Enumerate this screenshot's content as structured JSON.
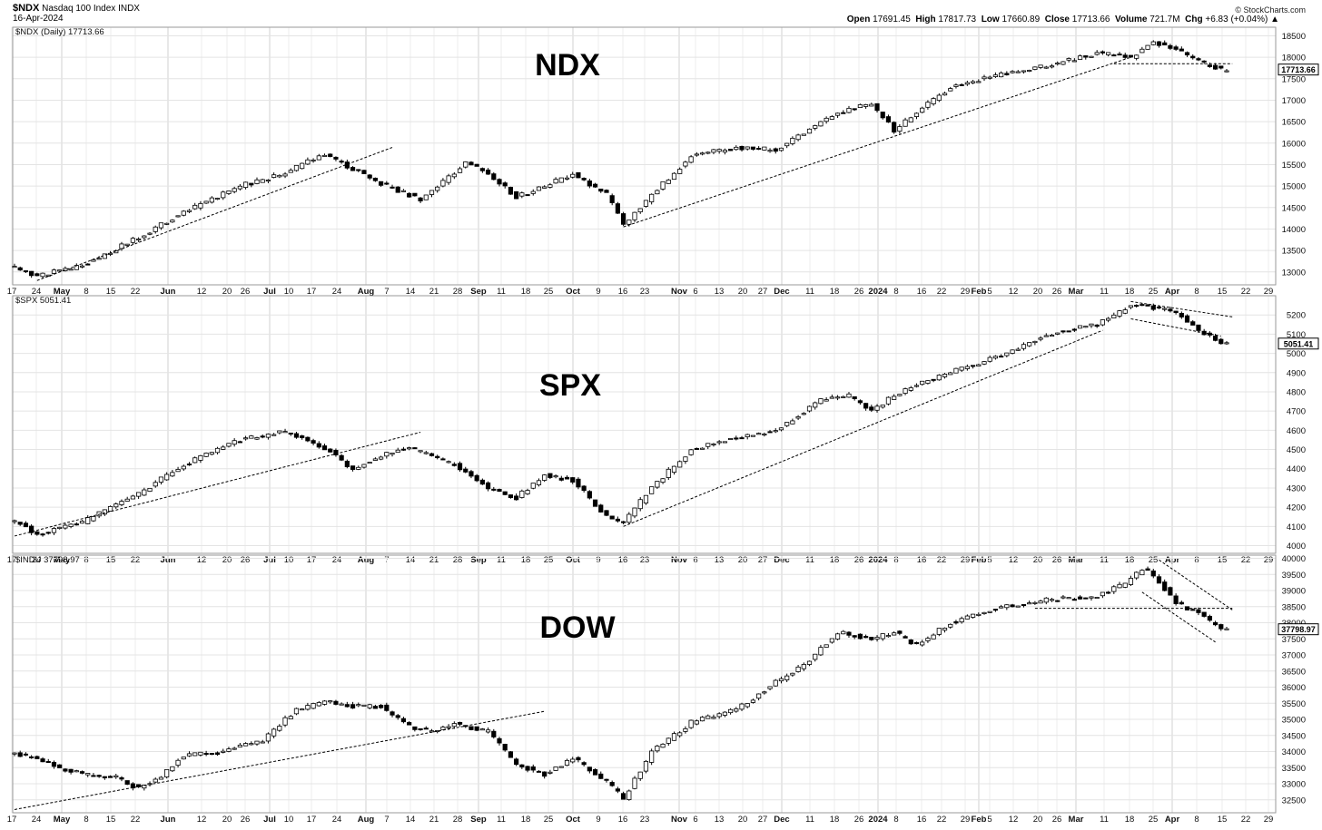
{
  "header": {
    "symbol": "$NDX",
    "name": "Nasdaq 100 Index",
    "exchange": "INDX",
    "date": "16-Apr-2024",
    "brand": "© StockCharts.com",
    "ohlc": {
      "open_label": "Open",
      "open": "17691.45",
      "high_label": "High",
      "high": "17817.73",
      "low_label": "Low",
      "low": "17660.89",
      "close_label": "Close",
      "close": "17713.66",
      "volume_label": "Volume",
      "volume": "721.7M",
      "chg_label": "Chg",
      "chg": "+6.83 (+0.04%)"
    }
  },
  "x_axis": {
    "ticks": [
      "17",
      "24",
      "May",
      "8",
      "15",
      "22",
      "Jun",
      "12",
      "20",
      "26",
      "Jul",
      "10",
      "17",
      "24",
      "Aug",
      "7",
      "14",
      "21",
      "28",
      "Sep",
      "11",
      "18",
      "25",
      "Oct",
      "9",
      "16",
      "23",
      "Nov",
      "6",
      "13",
      "20",
      "27",
      "Dec",
      "11",
      "18",
      "26",
      "2024",
      "8",
      "16",
      "22",
      "29",
      "Feb",
      "5",
      "12",
      "20",
      "26",
      "Mar",
      "11",
      "18",
      "25",
      "Apr",
      "8",
      "15",
      "22",
      "29"
    ],
    "bold_ticks": [
      "May",
      "Jun",
      "Jul",
      "Aug",
      "Sep",
      "Oct",
      "Nov",
      "Dec",
      "2024",
      "Feb",
      "Mar",
      "Apr"
    ]
  },
  "chart_data": [
    {
      "type": "candlestick",
      "panel_label": "$NDX (Daily) 17713.66",
      "big_label": "NDX",
      "last_value_label": "17713.66",
      "ylim": [
        12700,
        18700
      ],
      "y_ticks": [
        13000,
        13500,
        14000,
        14500,
        15000,
        15500,
        16000,
        16500,
        17000,
        17500,
        18000,
        18500
      ],
      "anchors": [
        [
          0,
          13100
        ],
        [
          4,
          12900
        ],
        [
          12,
          13150
        ],
        [
          22,
          13800
        ],
        [
          30,
          14400
        ],
        [
          40,
          15000
        ],
        [
          48,
          15300
        ],
        [
          55,
          15750
        ],
        [
          60,
          15400
        ],
        [
          66,
          15000
        ],
        [
          72,
          14700
        ],
        [
          78,
          15300
        ],
        [
          80,
          15550
        ],
        [
          84,
          15300
        ],
        [
          89,
          14750
        ],
        [
          94,
          15000
        ],
        [
          99,
          15300
        ],
        [
          105,
          14800
        ],
        [
          108,
          14100
        ],
        [
          113,
          14800
        ],
        [
          120,
          15700
        ],
        [
          128,
          15900
        ],
        [
          135,
          15850
        ],
        [
          143,
          16500
        ],
        [
          148,
          16800
        ],
        [
          152,
          16900
        ],
        [
          156,
          16300
        ],
        [
          160,
          16700
        ],
        [
          166,
          17300
        ],
        [
          175,
          17600
        ],
        [
          183,
          17800
        ],
        [
          192,
          18100
        ],
        [
          198,
          18000
        ],
        [
          202,
          18350
        ],
        [
          206,
          18200
        ],
        [
          210,
          17900
        ],
        [
          214,
          17714
        ]
      ],
      "trendlines": [
        {
          "from": [
            4,
            12800
          ],
          "to": [
            67,
            15900
          ],
          "style": "dashed"
        },
        {
          "from": [
            108,
            14050
          ],
          "to": [
            198,
            18000
          ],
          "style": "dashed"
        },
        {
          "from": [
            195,
            17850
          ],
          "to": [
            216,
            17850
          ],
          "style": "dashed"
        }
      ]
    },
    {
      "type": "candlestick",
      "panel_label": "$SPX 5051.41",
      "big_label": "SPX",
      "last_value_label": "5051.41",
      "ylim": [
        3960,
        5300
      ],
      "y_ticks": [
        4000,
        4100,
        4200,
        4300,
        4400,
        4500,
        4600,
        4700,
        4800,
        4900,
        5000,
        5100,
        5200
      ],
      "anchors": [
        [
          0,
          4130
        ],
        [
          4,
          4060
        ],
        [
          12,
          4120
        ],
        [
          22,
          4270
        ],
        [
          30,
          4420
        ],
        [
          40,
          4550
        ],
        [
          48,
          4590
        ],
        [
          55,
          4510
        ],
        [
          60,
          4400
        ],
        [
          66,
          4480
        ],
        [
          70,
          4510
        ],
        [
          78,
          4420
        ],
        [
          84,
          4300
        ],
        [
          89,
          4250
        ],
        [
          94,
          4370
        ],
        [
          99,
          4340
        ],
        [
          105,
          4150
        ],
        [
          108,
          4120
        ],
        [
          113,
          4300
        ],
        [
          120,
          4500
        ],
        [
          128,
          4560
        ],
        [
          135,
          4600
        ],
        [
          143,
          4760
        ],
        [
          148,
          4780
        ],
        [
          152,
          4700
        ],
        [
          156,
          4780
        ],
        [
          160,
          4840
        ],
        [
          166,
          4900
        ],
        [
          175,
          4990
        ],
        [
          183,
          5100
        ],
        [
          192,
          5150
        ],
        [
          198,
          5250
        ],
        [
          202,
          5240
        ],
        [
          206,
          5210
        ],
        [
          210,
          5120
        ],
        [
          214,
          5051
        ]
      ],
      "trendlines": [
        {
          "from": [
            0,
            4050
          ],
          "to": [
            72,
            4590
          ],
          "style": "dashed"
        },
        {
          "from": [
            108,
            4100
          ],
          "to": [
            193,
            5120
          ],
          "style": "dashed"
        },
        {
          "from": [
            198,
            5270
          ],
          "to": [
            216,
            5190
          ],
          "style": "dashed"
        },
        {
          "from": [
            198,
            5180
          ],
          "to": [
            214,
            5090
          ],
          "style": "dashed"
        }
      ]
    },
    {
      "type": "candlestick",
      "panel_label": "$INDU 37798.97",
      "big_label": "DOW",
      "last_value_label": "37798.97",
      "ylim": [
        32100,
        40100
      ],
      "y_ticks": [
        32500,
        33000,
        33500,
        34000,
        34500,
        35000,
        35500,
        36000,
        36500,
        37000,
        37500,
        38000,
        38500,
        39000,
        39500,
        40000
      ],
      "anchors": [
        [
          0,
          33950
        ],
        [
          4,
          33800
        ],
        [
          8,
          33500
        ],
        [
          12,
          33300
        ],
        [
          18,
          33200
        ],
        [
          22,
          32850
        ],
        [
          26,
          33200
        ],
        [
          30,
          33900
        ],
        [
          36,
          33950
        ],
        [
          40,
          34150
        ],
        [
          44,
          34350
        ],
        [
          50,
          35300
        ],
        [
          56,
          35550
        ],
        [
          60,
          35400
        ],
        [
          65,
          35400
        ],
        [
          70,
          34800
        ],
        [
          74,
          34600
        ],
        [
          78,
          34900
        ],
        [
          84,
          34600
        ],
        [
          89,
          33600
        ],
        [
          94,
          33300
        ],
        [
          99,
          33800
        ],
        [
          105,
          33050
        ],
        [
          108,
          32550
        ],
        [
          113,
          34000
        ],
        [
          120,
          34900
        ],
        [
          128,
          35300
        ],
        [
          135,
          36150
        ],
        [
          140,
          36700
        ],
        [
          146,
          37700
        ],
        [
          152,
          37500
        ],
        [
          156,
          37700
        ],
        [
          160,
          37300
        ],
        [
          166,
          38000
        ],
        [
          175,
          38500
        ],
        [
          183,
          38700
        ],
        [
          192,
          38850
        ],
        [
          197,
          39200
        ],
        [
          200,
          39700
        ],
        [
          203,
          39300
        ],
        [
          206,
          38600
        ],
        [
          210,
          38300
        ],
        [
          214,
          37799
        ]
      ],
      "trendlines": [
        {
          "from": [
            0,
            32200
          ],
          "to": [
            94,
            35250
          ],
          "style": "dashed"
        },
        {
          "from": [
            181,
            38450
          ],
          "to": [
            216,
            38450
          ],
          "style": "dashed"
        },
        {
          "from": [
            203,
            39950
          ],
          "to": [
            216,
            38400
          ],
          "style": "dashed"
        },
        {
          "from": [
            200,
            38950
          ],
          "to": [
            213,
            37400
          ],
          "style": "dashed"
        }
      ]
    }
  ]
}
